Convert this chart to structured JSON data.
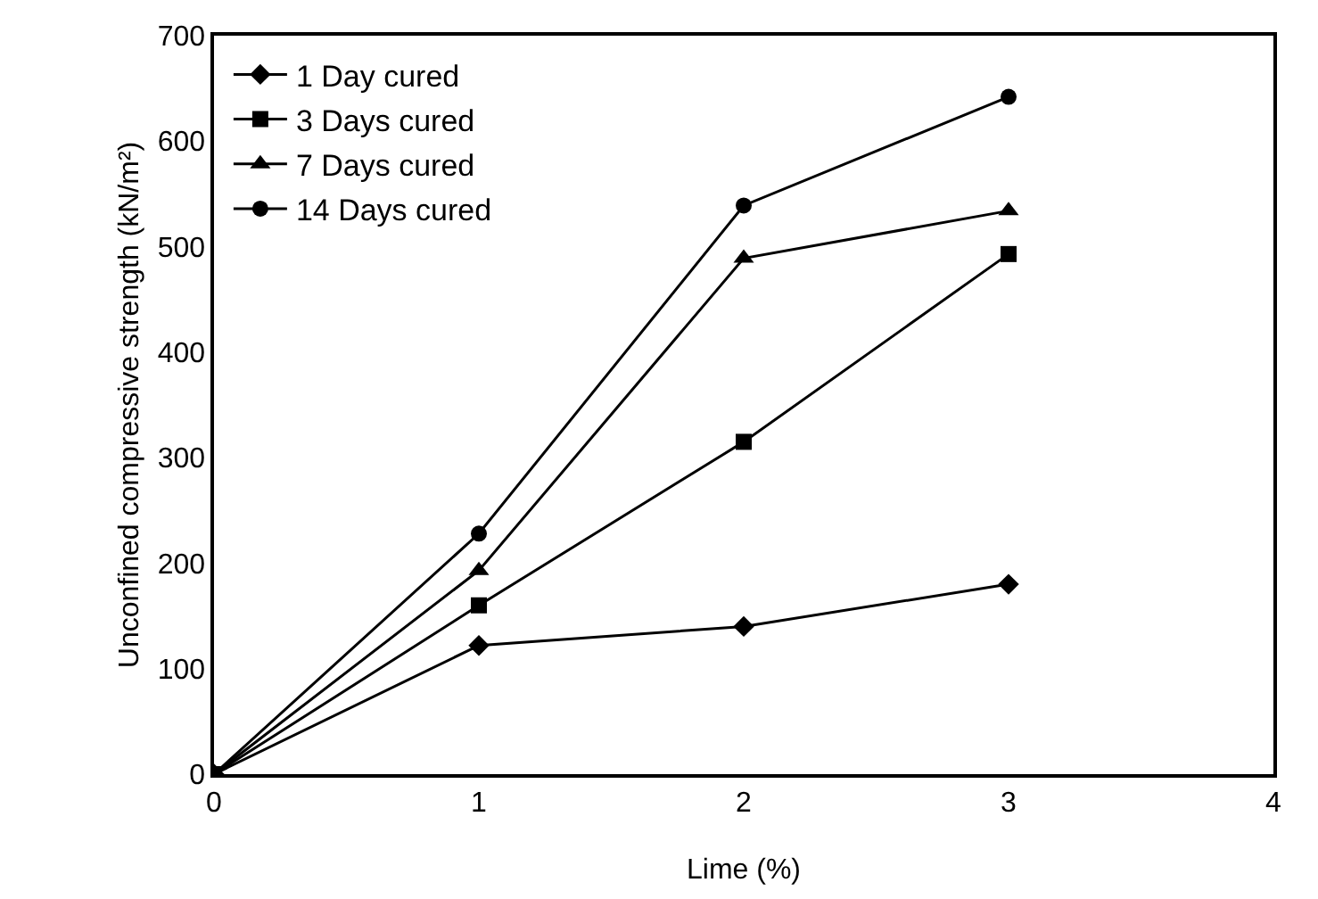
{
  "chart_data": {
    "type": "line",
    "xlabel": "Lime (%)",
    "ylabel": "Unconfined compressive strength (kN/m²)",
    "x": [
      0,
      1,
      2,
      3
    ],
    "series": [
      {
        "name": "1 Day cured",
        "color": "#000000",
        "marker": "diamond",
        "values": [
          0,
          122,
          140,
          180
        ]
      },
      {
        "name": "3 Days cured",
        "color": "#000000",
        "marker": "square",
        "values": [
          0,
          160,
          315,
          493
        ]
      },
      {
        "name": "7 Days cured",
        "color": "#000000",
        "marker": "triangle",
        "values": [
          0,
          193,
          489,
          534
        ]
      },
      {
        "name": "14 Days cured",
        "color": "#000000",
        "marker": "circle",
        "values": [
          0,
          228,
          539,
          642
        ]
      }
    ],
    "xlim": [
      0,
      4
    ],
    "xticks": [
      0,
      1,
      2,
      3,
      4
    ],
    "ylim": [
      0,
      700
    ],
    "yticks": [
      0,
      100,
      200,
      300,
      400,
      500,
      600,
      700
    ],
    "grid": false,
    "legend": "top left",
    "line_style": "solid"
  }
}
